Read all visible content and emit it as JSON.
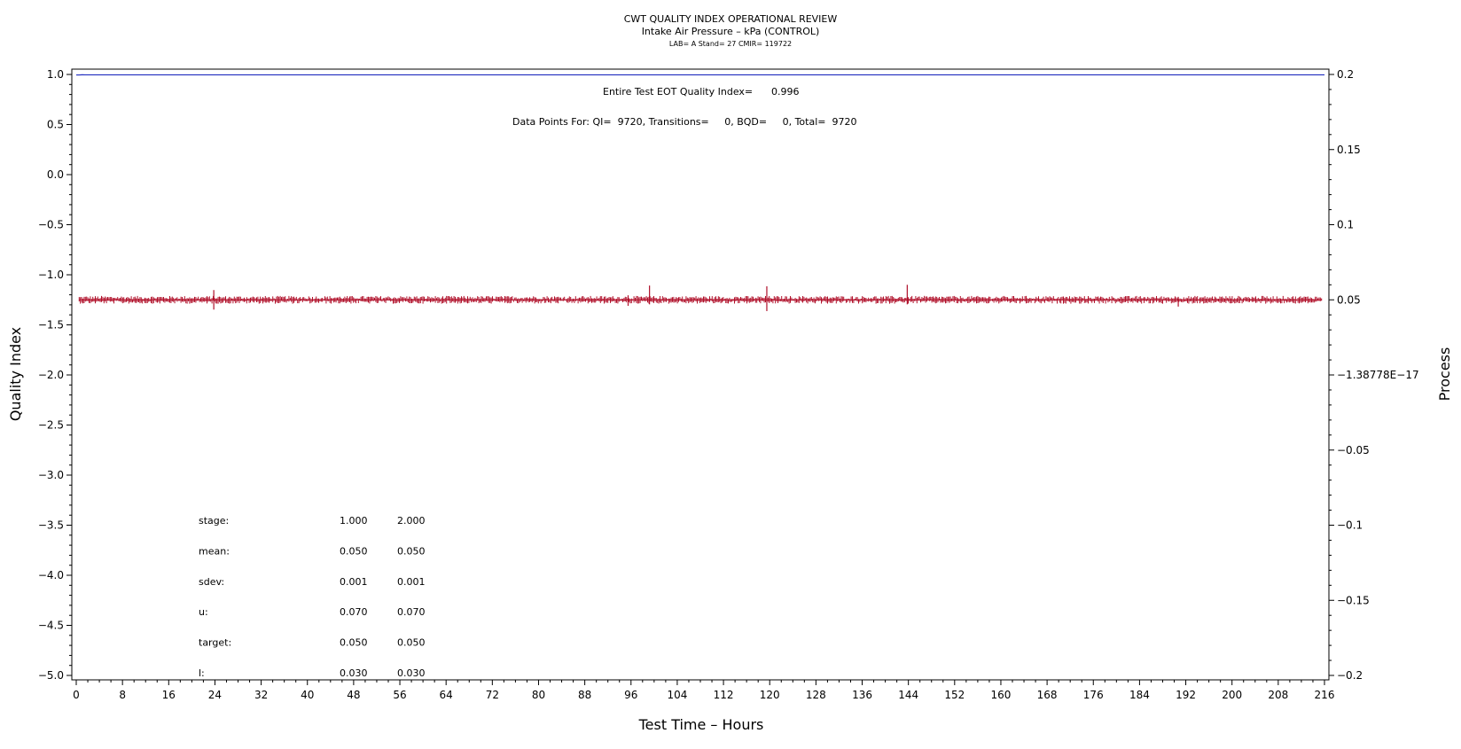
{
  "colors": {
    "qi_line": "#1f2bbf",
    "process_line": "#b0102a",
    "axis": "#000000"
  },
  "chart_data": {
    "type": "line",
    "title": "CWT QUALITY INDEX OPERATIONAL REVIEW",
    "subtitle": "Intake Air Pressure – kPa (CONTROL)",
    "subtitle2": "LAB= A Stand= 27 CMIR= 119722",
    "xlabel": "Test Time – Hours",
    "ylabel": "Quality Index",
    "y2label": "Process",
    "xlim": [
      0,
      216
    ],
    "ylim": [
      -5.0,
      1.0
    ],
    "y2lim": [
      -0.2,
      0.2
    ],
    "x_ticks": [
      "0",
      "8",
      "16",
      "24",
      "32",
      "40",
      "48",
      "56",
      "64",
      "72",
      "80",
      "88",
      "96",
      "104",
      "112",
      "120",
      "128",
      "136",
      "144",
      "152",
      "160",
      "168",
      "176",
      "184",
      "192",
      "200",
      "208",
      "216"
    ],
    "x_tick_values": [
      0,
      8,
      16,
      24,
      32,
      40,
      48,
      56,
      64,
      72,
      80,
      88,
      96,
      104,
      112,
      120,
      128,
      136,
      144,
      152,
      160,
      168,
      176,
      184,
      192,
      200,
      208,
      216
    ],
    "y_ticks": [
      "1.0",
      "0.5",
      "0.0",
      "−0.5",
      "−1.0",
      "−1.5",
      "−2.0",
      "−2.5",
      "−3.0",
      "−3.5",
      "−4.0",
      "−4.5",
      "−5.0"
    ],
    "y_tick_values": [
      1.0,
      0.5,
      0.0,
      -0.5,
      -1.0,
      -1.5,
      -2.0,
      -2.5,
      -3.0,
      -3.5,
      -4.0,
      -4.5,
      -5.0
    ],
    "y2_ticks": [
      "0.2",
      "0.15",
      "0.1",
      "0.05",
      "−1.38778E−17",
      "−0.05",
      "−0.1",
      "−0.15",
      "−0.2"
    ],
    "y2_tick_values": [
      0.2,
      0.15,
      0.1,
      0.05,
      0.0,
      -0.05,
      -0.1,
      -0.15,
      -0.2
    ],
    "grid": false,
    "series": [
      {
        "axis": "left",
        "x": [
          0,
          0.5,
          1.0,
          1.5,
          2.0,
          2.5,
          216
        ],
        "values": [
          0.995,
          0.995,
          0.997,
          0.996,
          0.996,
          0.996,
          0.996
        ]
      },
      {
        "axis": "right",
        "mean": 0.05,
        "band": 0.001,
        "x_range": [
          0.5,
          215.5
        ],
        "spikes": [
          {
            "x": 23.8,
            "low": 0.0435,
            "high": 0.0565
          },
          {
            "x": 95.5,
            "low": 0.046,
            "high": 0.053
          },
          {
            "x": 99.2,
            "low": 0.047,
            "high": 0.0595
          },
          {
            "x": 119.5,
            "low": 0.0425,
            "high": 0.059
          },
          {
            "x": 143.8,
            "low": 0.047,
            "high": 0.06
          },
          {
            "x": 190.7,
            "low": 0.0455,
            "high": 0.052
          }
        ]
      }
    ],
    "annotations": {
      "qi_label": "Entire Test EOT Quality Index=",
      "qi_value": "0.996",
      "points_text": "Data Points For: QI=  9720, Transitions=     0, BQD=     0, Total=  9720"
    },
    "stats_table": {
      "rows": [
        {
          "label": "stage:",
          "v1": "1.000",
          "v2": "2.000"
        },
        {
          "label": "mean:",
          "v1": "0.050",
          "v2": "0.050"
        },
        {
          "label": "sdev:",
          "v1": "0.001",
          "v2": "0.001"
        },
        {
          "label": "u:",
          "v1": "0.070",
          "v2": "0.070"
        },
        {
          "label": "target:",
          "v1": "0.050",
          "v2": "0.050"
        },
        {
          "label": "l:",
          "v1": "0.030",
          "v2": "0.030"
        }
      ]
    }
  }
}
